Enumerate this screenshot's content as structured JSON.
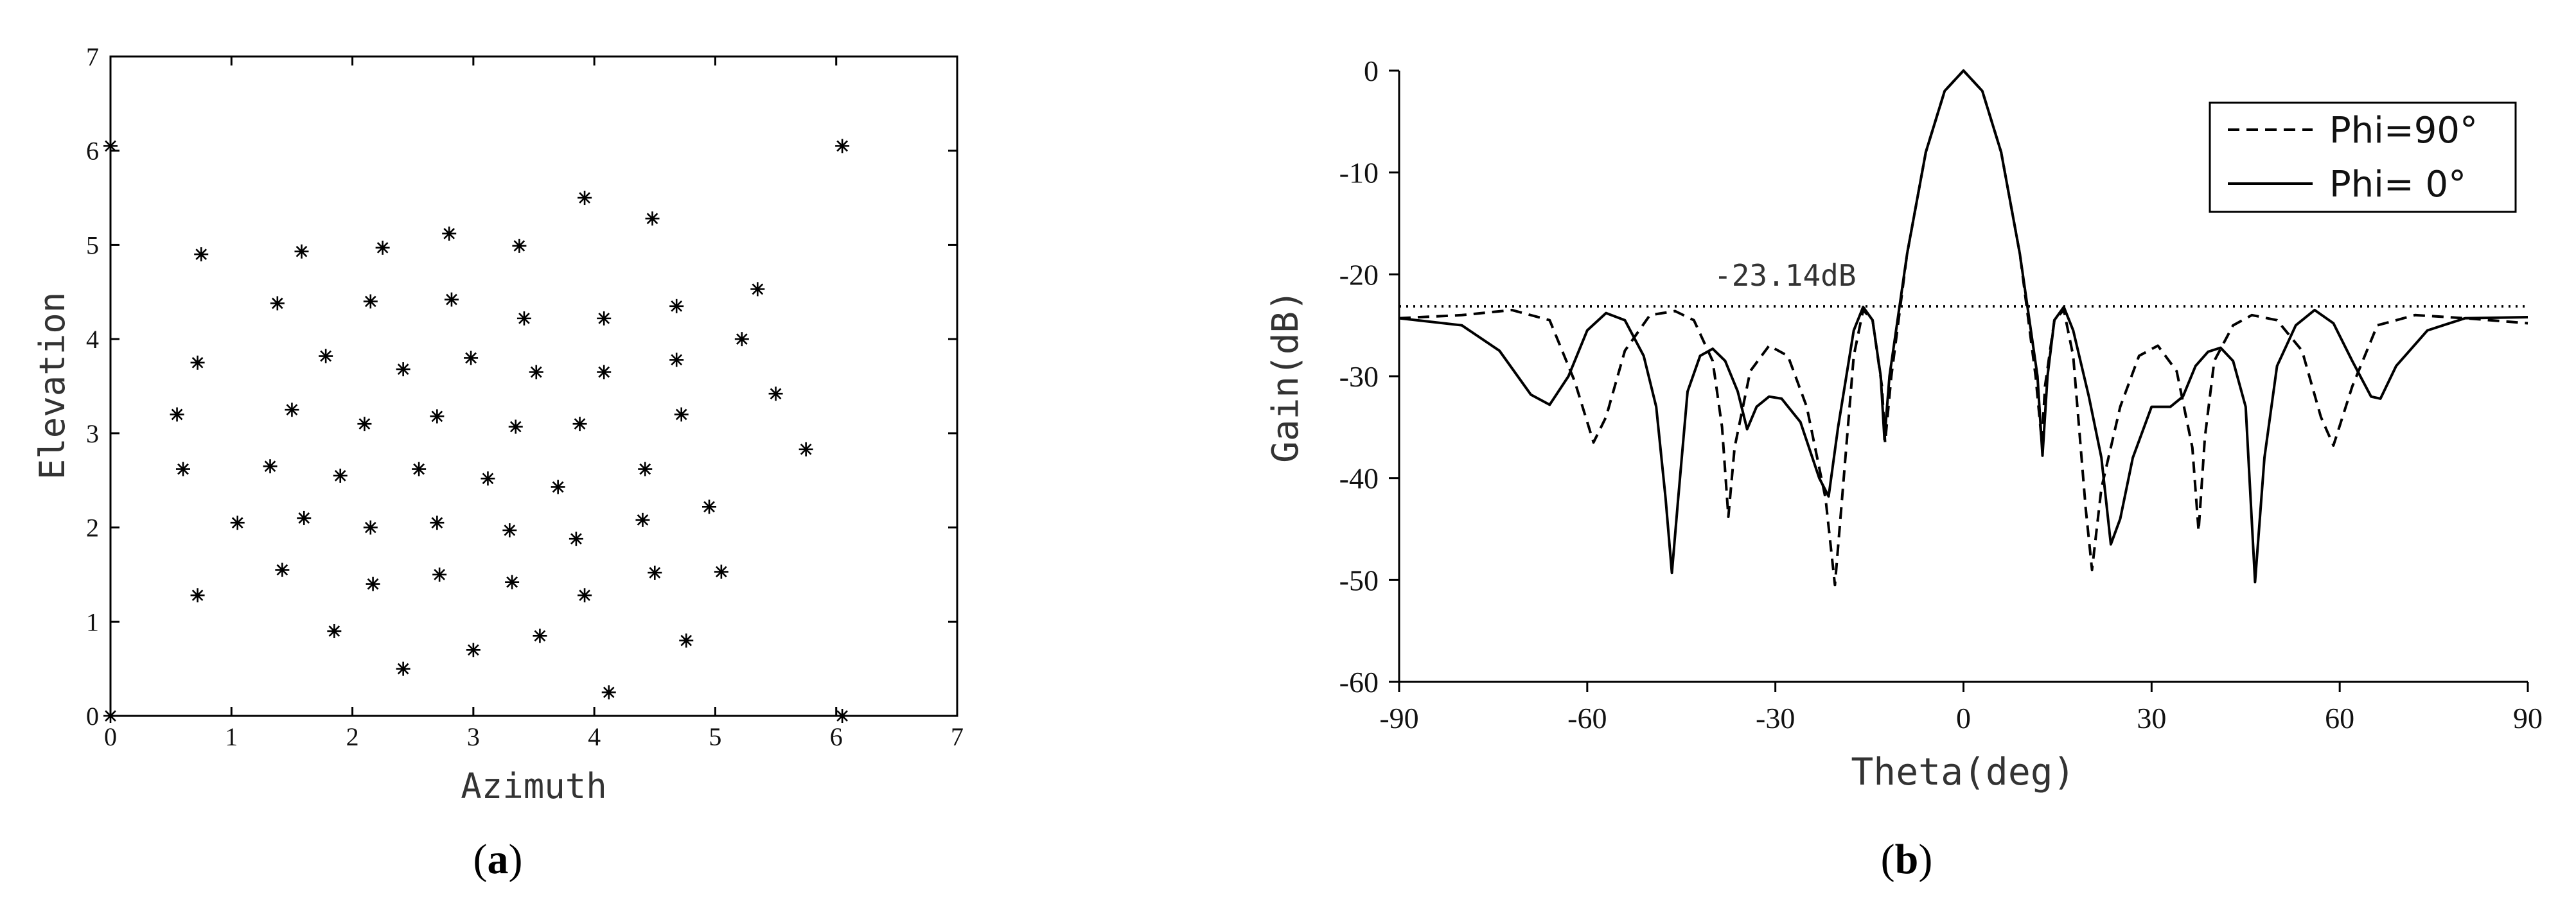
{
  "chart_data": [
    {
      "type": "scatter",
      "xlabel": "Azimuth",
      "ylabel": "Elevation",
      "xlim": [
        0,
        7
      ],
      "ylim": [
        0,
        7
      ],
      "xticks": [
        "0",
        "1",
        "2",
        "3",
        "4",
        "5",
        "6",
        "7"
      ],
      "yticks": [
        "0",
        "1",
        "2",
        "3",
        "4",
        "5",
        "6",
        "7"
      ],
      "panel_label": "a",
      "marker": "asterisk",
      "grid": false,
      "series": [
        {
          "points": [
            [
              0,
              0
            ],
            [
              0,
              6.05
            ],
            [
              6.05,
              0
            ],
            [
              6.05,
              6.05
            ],
            [
              0.55,
              3.2
            ],
            [
              0.6,
              2.62
            ],
            [
              0.72,
              3.75
            ],
            [
              0.75,
              4.9
            ],
            [
              0.72,
              1.28
            ],
            [
              1.05,
              2.05
            ],
            [
              1.32,
              2.65
            ],
            [
              1.38,
              4.38
            ],
            [
              1.42,
              1.55
            ],
            [
              1.5,
              3.25
            ],
            [
              1.58,
              4.93
            ],
            [
              1.6,
              2.1
            ],
            [
              1.78,
              3.82
            ],
            [
              1.85,
              0.9
            ],
            [
              1.9,
              2.55
            ],
            [
              2.1,
              3.1
            ],
            [
              2.15,
              2.0
            ],
            [
              2.15,
              4.4
            ],
            [
              2.17,
              1.4
            ],
            [
              2.25,
              4.97
            ],
            [
              2.42,
              3.68
            ],
            [
              2.42,
              0.5
            ],
            [
              2.55,
              2.62
            ],
            [
              2.7,
              3.18
            ],
            [
              2.7,
              2.05
            ],
            [
              2.72,
              1.5
            ],
            [
              2.8,
              5.12
            ],
            [
              2.82,
              4.42
            ],
            [
              2.98,
              3.8
            ],
            [
              3.0,
              0.7
            ],
            [
              3.12,
              2.52
            ],
            [
              3.3,
              1.97
            ],
            [
              3.32,
              1.42
            ],
            [
              3.35,
              3.07
            ],
            [
              3.38,
              4.99
            ],
            [
              3.42,
              4.22
            ],
            [
              3.52,
              3.65
            ],
            [
              3.55,
              0.85
            ],
            [
              3.7,
              2.43
            ],
            [
              3.85,
              1.88
            ],
            [
              3.88,
              3.1
            ],
            [
              3.92,
              5.5
            ],
            [
              3.92,
              1.28
            ],
            [
              4.08,
              4.22
            ],
            [
              4.08,
              3.65
            ],
            [
              4.12,
              0.25
            ],
            [
              4.4,
              2.08
            ],
            [
              4.42,
              2.62
            ],
            [
              4.48,
              5.28
            ],
            [
              4.5,
              1.52
            ],
            [
              4.68,
              4.35
            ],
            [
              4.68,
              3.78
            ],
            [
              4.72,
              3.2
            ],
            [
              4.76,
              0.8
            ],
            [
              4.95,
              2.22
            ],
            [
              5.05,
              1.53
            ],
            [
              5.22,
              4.0
            ],
            [
              5.35,
              4.53
            ],
            [
              5.5,
              3.42
            ],
            [
              5.75,
              2.83
            ]
          ]
        }
      ]
    },
    {
      "type": "line",
      "xlabel": "Theta(deg)",
      "ylabel": "Gain(dB)",
      "xlim": [
        -90,
        90
      ],
      "ylim": [
        -60,
        0
      ],
      "xticks": [
        "-90",
        "-60",
        "-30",
        "0",
        "30",
        "60",
        "90"
      ],
      "yticks": [
        "0",
        "-10",
        "-20",
        "-30",
        "-40",
        "-50",
        "-60"
      ],
      "panel_label": "b",
      "grid": false,
      "legend_position": "top-right",
      "annotation": {
        "text": "-23.14dB",
        "y": -23.14
      },
      "series": [
        {
          "name": "Phi=90°",
          "style": "dashed",
          "points": [
            [
              -90,
              -24.3
            ],
            [
              -80,
              -24
            ],
            [
              -72,
              -23.5
            ],
            [
              -66,
              -24.5
            ],
            [
              -62,
              -30.5
            ],
            [
              -59,
              -36.5
            ],
            [
              -57,
              -34
            ],
            [
              -54,
              -27.5
            ],
            [
              -50,
              -24
            ],
            [
              -46,
              -23.6
            ],
            [
              -43,
              -24.5
            ],
            [
              -40,
              -28.5
            ],
            [
              -38.5,
              -35
            ],
            [
              -37.5,
              -43.8
            ],
            [
              -36.5,
              -37
            ],
            [
              -34,
              -29.5
            ],
            [
              -31,
              -27
            ],
            [
              -28,
              -28
            ],
            [
              -25,
              -33
            ],
            [
              -22,
              -42
            ],
            [
              -20.5,
              -50.5
            ],
            [
              -19.5,
              -43
            ],
            [
              -17.5,
              -28
            ],
            [
              -16,
              -23.5
            ],
            [
              -14.5,
              -24.5
            ],
            [
              -13,
              -31
            ],
            [
              -12.5,
              -36.5
            ],
            [
              -11.5,
              -30
            ],
            [
              -9,
              -18
            ],
            [
              -6,
              -8
            ],
            [
              -3,
              -2
            ],
            [
              0,
              0
            ],
            [
              3,
              -2
            ],
            [
              6,
              -8
            ],
            [
              9,
              -18
            ],
            [
              11.5,
              -30
            ],
            [
              12.5,
              -36.5
            ],
            [
              13,
              -31
            ],
            [
              14.5,
              -24.5
            ],
            [
              16,
              -23.5
            ],
            [
              17.5,
              -28
            ],
            [
              19.5,
              -43
            ],
            [
              20.5,
              -49
            ],
            [
              22,
              -41
            ],
            [
              25,
              -33
            ],
            [
              28,
              -28
            ],
            [
              31,
              -27
            ],
            [
              34,
              -29.5
            ],
            [
              36.5,
              -37
            ],
            [
              37.5,
              -45.2
            ],
            [
              38.5,
              -36
            ],
            [
              40,
              -28.5
            ],
            [
              43,
              -25
            ],
            [
              46,
              -24
            ],
            [
              50,
              -24.5
            ],
            [
              54,
              -27.5
            ],
            [
              57,
              -34
            ],
            [
              59,
              -36.8
            ],
            [
              62,
              -31
            ],
            [
              66,
              -25
            ],
            [
              72,
              -24
            ],
            [
              80,
              -24.3
            ],
            [
              90,
              -24.8
            ]
          ]
        },
        {
          "name": "Phi= 0°",
          "style": "solid",
          "points": [
            [
              -90,
              -24.3
            ],
            [
              -80,
              -25
            ],
            [
              -74,
              -27.5
            ],
            [
              -69,
              -31.8
            ],
            [
              -66,
              -32.8
            ],
            [
              -63,
              -30
            ],
            [
              -60,
              -25.5
            ],
            [
              -57,
              -23.8
            ],
            [
              -54,
              -24.5
            ],
            [
              -51,
              -28
            ],
            [
              -49,
              -33
            ],
            [
              -47.5,
              -42
            ],
            [
              -46.5,
              -49.3
            ],
            [
              -45.5,
              -42
            ],
            [
              -44,
              -31.5
            ],
            [
              -42,
              -28
            ],
            [
              -40,
              -27.3
            ],
            [
              -38,
              -28.5
            ],
            [
              -36,
              -31.5
            ],
            [
              -34.5,
              -35.2
            ],
            [
              -33,
              -33
            ],
            [
              -31,
              -32
            ],
            [
              -29,
              -32.2
            ],
            [
              -26,
              -34.5
            ],
            [
              -23,
              -40
            ],
            [
              -21.5,
              -41.8
            ],
            [
              -20,
              -35
            ],
            [
              -17.5,
              -25.5
            ],
            [
              -16,
              -23.2
            ],
            [
              -14.5,
              -24.5
            ],
            [
              -13.2,
              -30
            ],
            [
              -12.6,
              -36.2
            ],
            [
              -11.8,
              -30
            ],
            [
              -9,
              -18
            ],
            [
              -6,
              -8
            ],
            [
              -3,
              -2
            ],
            [
              0,
              0
            ],
            [
              3,
              -2
            ],
            [
              6,
              -8
            ],
            [
              9,
              -18
            ],
            [
              11.8,
              -30
            ],
            [
              12.6,
              -37.8
            ],
            [
              13.4,
              -30
            ],
            [
              14.5,
              -24.5
            ],
            [
              16,
              -23.2
            ],
            [
              17.5,
              -25.5
            ],
            [
              20,
              -32
            ],
            [
              22,
              -38
            ],
            [
              23.5,
              -46.5
            ],
            [
              25,
              -44
            ],
            [
              27,
              -38
            ],
            [
              30,
              -33
            ],
            [
              33,
              -33
            ],
            [
              35,
              -32
            ],
            [
              37,
              -29
            ],
            [
              39,
              -27.6
            ],
            [
              41,
              -27.2
            ],
            [
              43,
              -28.5
            ],
            [
              45,
              -33
            ],
            [
              46.5,
              -50.2
            ],
            [
              48,
              -38
            ],
            [
              50,
              -29
            ],
            [
              53,
              -25
            ],
            [
              56,
              -23.5
            ],
            [
              59,
              -24.8
            ],
            [
              62,
              -28.5
            ],
            [
              65,
              -32
            ],
            [
              66.5,
              -32.2
            ],
            [
              69,
              -29
            ],
            [
              74,
              -25.5
            ],
            [
              80,
              -24.3
            ],
            [
              90,
              -24.2
            ]
          ]
        }
      ]
    }
  ]
}
